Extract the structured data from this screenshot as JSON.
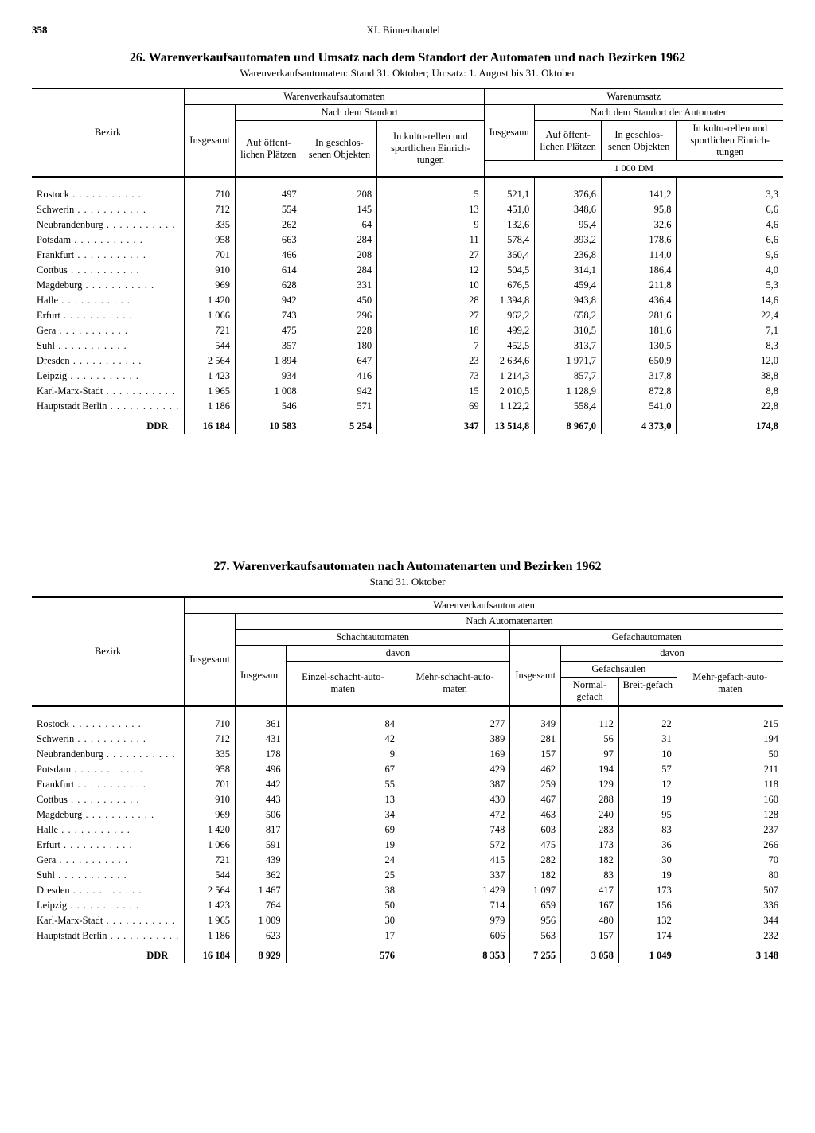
{
  "page": {
    "number": "358",
    "section": "XI. Binnenhandel"
  },
  "table26": {
    "title": "26. Warenverkaufsautomaten und Umsatz nach dem Standort der Automaten und nach Bezirken 1962",
    "subtitle": "Warenverkaufsautomaten: Stand 31. Oktober; Umsatz: 1. August bis 31. Oktober",
    "col_bezirk": "Bezirk",
    "group_automaten": "Warenverkaufsautomaten",
    "group_umsatz": "Warenumsatz",
    "sub_standort": "Nach dem Standort",
    "sub_standort_auto": "Nach dem Standort der Automaten",
    "h_insgesamt": "Insgesamt",
    "h_oeffentlich": "Auf öffent-lichen Plätzen",
    "h_geschlossen": "In geschlos-senen Objekten",
    "h_kultur": "In kultu-rellen und sportlichen Einrich-tungen",
    "units": "1 000 DM",
    "rows": [
      {
        "name": "Rostock",
        "a": "710",
        "b": "497",
        "c": "208",
        "d": "5",
        "e": "521,1",
        "f": "376,6",
        "g": "141,2",
        "h": "3,3"
      },
      {
        "name": "Schwerin",
        "a": "712",
        "b": "554",
        "c": "145",
        "d": "13",
        "e": "451,0",
        "f": "348,6",
        "g": "95,8",
        "h": "6,6"
      },
      {
        "name": "Neubrandenburg",
        "a": "335",
        "b": "262",
        "c": "64",
        "d": "9",
        "e": "132,6",
        "f": "95,4",
        "g": "32,6",
        "h": "4,6"
      },
      {
        "name": "Potsdam",
        "a": "958",
        "b": "663",
        "c": "284",
        "d": "11",
        "e": "578,4",
        "f": "393,2",
        "g": "178,6",
        "h": "6,6"
      },
      {
        "name": "Frankfurt",
        "a": "701",
        "b": "466",
        "c": "208",
        "d": "27",
        "e": "360,4",
        "f": "236,8",
        "g": "114,0",
        "h": "9,6"
      },
      {
        "name": "Cottbus",
        "a": "910",
        "b": "614",
        "c": "284",
        "d": "12",
        "e": "504,5",
        "f": "314,1",
        "g": "186,4",
        "h": "4,0"
      },
      {
        "name": "Magdeburg",
        "a": "969",
        "b": "628",
        "c": "331",
        "d": "10",
        "e": "676,5",
        "f": "459,4",
        "g": "211,8",
        "h": "5,3"
      },
      {
        "name": "Halle",
        "a": "1 420",
        "b": "942",
        "c": "450",
        "d": "28",
        "e": "1 394,8",
        "f": "943,8",
        "g": "436,4",
        "h": "14,6"
      },
      {
        "name": "Erfurt",
        "a": "1 066",
        "b": "743",
        "c": "296",
        "d": "27",
        "e": "962,2",
        "f": "658,2",
        "g": "281,6",
        "h": "22,4"
      },
      {
        "name": "Gera",
        "a": "721",
        "b": "475",
        "c": "228",
        "d": "18",
        "e": "499,2",
        "f": "310,5",
        "g": "181,6",
        "h": "7,1"
      },
      {
        "name": "Suhl",
        "a": "544",
        "b": "357",
        "c": "180",
        "d": "7",
        "e": "452,5",
        "f": "313,7",
        "g": "130,5",
        "h": "8,3"
      },
      {
        "name": "Dresden",
        "a": "2 564",
        "b": "1 894",
        "c": "647",
        "d": "23",
        "e": "2 634,6",
        "f": "1 971,7",
        "g": "650,9",
        "h": "12,0"
      },
      {
        "name": "Leipzig",
        "a": "1 423",
        "b": "934",
        "c": "416",
        "d": "73",
        "e": "1 214,3",
        "f": "857,7",
        "g": "317,8",
        "h": "38,8"
      },
      {
        "name": "Karl-Marx-Stadt",
        "a": "1 965",
        "b": "1 008",
        "c": "942",
        "d": "15",
        "e": "2 010,5",
        "f": "1 128,9",
        "g": "872,8",
        "h": "8,8"
      },
      {
        "name": "Hauptstadt Berlin",
        "a": "1 186",
        "b": "546",
        "c": "571",
        "d": "69",
        "e": "1 122,2",
        "f": "558,4",
        "g": "541,0",
        "h": "22,8"
      }
    ],
    "total": {
      "name": "DDR",
      "a": "16 184",
      "b": "10 583",
      "c": "5 254",
      "d": "347",
      "e": "13 514,8",
      "f": "8 967,0",
      "g": "4 373,0",
      "h": "174,8"
    }
  },
  "table27": {
    "title": "27. Warenverkaufsautomaten nach Automatenarten und Bezirken 1962",
    "subtitle": "Stand 31. Oktober",
    "col_bezirk": "Bezirk",
    "group_automaten": "Warenverkaufsautomaten",
    "sub_arten": "Nach Automatenarten",
    "h_insgesamt": "Insgesamt",
    "h_schacht": "Schachtautomaten",
    "h_gefach": "Gefachautomaten",
    "h_davon": "davon",
    "h_einzel": "Einzel-schacht-auto-maten",
    "h_mehr_schacht": "Mehr-schacht-auto-maten",
    "h_saeulen": "Gefachsäulen",
    "h_normal": "Normal-gefach",
    "h_breit": "Breit-gefach",
    "h_mehr_gefach": "Mehr-gefach-auto-maten",
    "rows": [
      {
        "name": "Rostock",
        "a": "710",
        "b": "361",
        "c": "84",
        "d": "277",
        "e": "349",
        "f": "112",
        "g": "22",
        "h": "215"
      },
      {
        "name": "Schwerin",
        "a": "712",
        "b": "431",
        "c": "42",
        "d": "389",
        "e": "281",
        "f": "56",
        "g": "31",
        "h": "194"
      },
      {
        "name": "Neubrandenburg",
        "a": "335",
        "b": "178",
        "c": "9",
        "d": "169",
        "e": "157",
        "f": "97",
        "g": "10",
        "h": "50"
      },
      {
        "name": "Potsdam",
        "a": "958",
        "b": "496",
        "c": "67",
        "d": "429",
        "e": "462",
        "f": "194",
        "g": "57",
        "h": "211"
      },
      {
        "name": "Frankfurt",
        "a": "701",
        "b": "442",
        "c": "55",
        "d": "387",
        "e": "259",
        "f": "129",
        "g": "12",
        "h": "118"
      },
      {
        "name": "Cottbus",
        "a": "910",
        "b": "443",
        "c": "13",
        "d": "430",
        "e": "467",
        "f": "288",
        "g": "19",
        "h": "160"
      },
      {
        "name": "Magdeburg",
        "a": "969",
        "b": "506",
        "c": "34",
        "d": "472",
        "e": "463",
        "f": "240",
        "g": "95",
        "h": "128"
      },
      {
        "name": "Halle",
        "a": "1 420",
        "b": "817",
        "c": "69",
        "d": "748",
        "e": "603",
        "f": "283",
        "g": "83",
        "h": "237"
      },
      {
        "name": "Erfurt",
        "a": "1 066",
        "b": "591",
        "c": "19",
        "d": "572",
        "e": "475",
        "f": "173",
        "g": "36",
        "h": "266"
      },
      {
        "name": "Gera",
        "a": "721",
        "b": "439",
        "c": "24",
        "d": "415",
        "e": "282",
        "f": "182",
        "g": "30",
        "h": "70"
      },
      {
        "name": "Suhl",
        "a": "544",
        "b": "362",
        "c": "25",
        "d": "337",
        "e": "182",
        "f": "83",
        "g": "19",
        "h": "80"
      },
      {
        "name": "Dresden",
        "a": "2 564",
        "b": "1 467",
        "c": "38",
        "d": "1 429",
        "e": "1 097",
        "f": "417",
        "g": "173",
        "h": "507"
      },
      {
        "name": "Leipzig",
        "a": "1 423",
        "b": "764",
        "c": "50",
        "d": "714",
        "e": "659",
        "f": "167",
        "g": "156",
        "h": "336"
      },
      {
        "name": "Karl-Marx-Stadt",
        "a": "1 965",
        "b": "1 009",
        "c": "30",
        "d": "979",
        "e": "956",
        "f": "480",
        "g": "132",
        "h": "344"
      },
      {
        "name": "Hauptstadt Berlin",
        "a": "1 186",
        "b": "623",
        "c": "17",
        "d": "606",
        "e": "563",
        "f": "157",
        "g": "174",
        "h": "232"
      }
    ],
    "total": {
      "name": "DDR",
      "a": "16 184",
      "b": "8 929",
      "c": "576",
      "d": "8 353",
      "e": "7 255",
      "f": "3 058",
      "g": "1 049",
      "h": "3 148"
    }
  }
}
